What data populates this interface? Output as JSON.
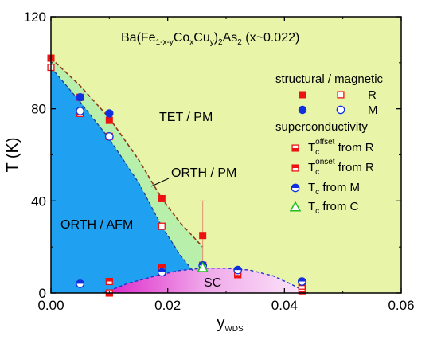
{
  "chart_data": {
    "type": "scatter",
    "title": {
      "base": "Ba(Fe",
      "sub1": "1-x-y",
      "mid1": "Co",
      "sub2": "x",
      "mid2": "Cu",
      "sub3": "y",
      "mid3": ")",
      "sub4": "2",
      "mid4": "As",
      "sub5": "2",
      "tail": "  (x~0.022)"
    },
    "xlabel": {
      "base": "y",
      "sub": "WDS"
    },
    "ylabel": "T (K)",
    "xlim": [
      0.0,
      0.06
    ],
    "ylim": [
      0,
      120
    ],
    "xticks": [
      0.0,
      0.02,
      0.04,
      0.06
    ],
    "xtick_labels": [
      "0.00",
      "0.02",
      "0.04",
      "0.06"
    ],
    "yticks": [
      0,
      40,
      80,
      120
    ],
    "ytick_labels": [
      "0",
      "40",
      "80",
      "120"
    ],
    "grid": false,
    "regions": [
      {
        "label": "TET / PM",
        "color": "#e8f5a8"
      },
      {
        "label": "ORTH / PM",
        "color": "#b8efaa"
      },
      {
        "label": "ORTH / AFM",
        "color": "#1fa0f0"
      },
      {
        "label": "SC",
        "color": "#e040d0"
      }
    ],
    "boundaries": {
      "structural": {
        "x": [
          0.0,
          0.005,
          0.01,
          0.015,
          0.019,
          0.022,
          0.026
        ],
        "y": [
          102,
          90,
          76,
          58,
          41,
          31,
          20
        ]
      },
      "magnetic": {
        "x": [
          0.0,
          0.005,
          0.01,
          0.015,
          0.019,
          0.022,
          0.0245
        ],
        "y": [
          98,
          83,
          67,
          48,
          29,
          17,
          9
        ]
      },
      "sc_dome": {
        "x": [
          0.009,
          0.013,
          0.018,
          0.022,
          0.026,
          0.03,
          0.034,
          0.038,
          0.041,
          0.044
        ],
        "y": [
          0,
          4,
          7.5,
          9.8,
          10.8,
          10.8,
          10,
          7.5,
          4,
          0
        ]
      }
    },
    "legend": {
      "placement": "right",
      "header1": "structural / magnetic",
      "header2": "superconductivity",
      "entries": [
        {
          "marker": "square-filled",
          "label": "R"
        },
        {
          "marker": "square-open",
          "label": "R"
        },
        {
          "marker": "circle-filled",
          "label": "M"
        },
        {
          "marker": "circle-open",
          "label": "M"
        },
        {
          "marker": "square-half-bottom",
          "prefix": "T",
          "sub": "c",
          "sup": "offset",
          "suffix": " from R"
        },
        {
          "marker": "square-half-top",
          "prefix": "T",
          "sub": "c",
          "sup": "onset",
          "suffix": " from R"
        },
        {
          "marker": "circle-half-top",
          "prefix": "T",
          "sub": "c",
          "suffix": " from M"
        },
        {
          "marker": "triangle-open",
          "prefix": "T",
          "sub": "c",
          "suffix": " from C"
        }
      ]
    },
    "series": [
      {
        "name": "structural R",
        "marker": "square-filled",
        "color": "#ee1111",
        "x": [
          0.0,
          0.005,
          0.01,
          0.019,
          0.026
        ],
        "y": [
          102,
          85,
          75,
          41,
          25
        ]
      },
      {
        "name": "magnetic R",
        "marker": "square-open",
        "color": "#ee1111",
        "x": [
          0.0,
          0.005,
          0.01,
          0.019,
          0.026
        ],
        "y": [
          98,
          78,
          68,
          29,
          11
        ]
      },
      {
        "name": "structural M",
        "marker": "circle-filled",
        "color": "#1030e0",
        "x": [
          0.005,
          0.01
        ],
        "y": [
          85,
          78
        ]
      },
      {
        "name": "magnetic M",
        "marker": "circle-open",
        "color": "#1030e0",
        "x": [
          0.005,
          0.01
        ],
        "y": [
          79,
          68
        ]
      },
      {
        "name": "Tc offset from R",
        "marker": "square-half-bottom",
        "color": "#ee1111",
        "x": [
          0.01,
          0.019,
          0.032,
          0.043
        ],
        "y": [
          0,
          9,
          8,
          1
        ]
      },
      {
        "name": "Tc onset from R",
        "marker": "square-half-top",
        "color": "#ee1111",
        "x": [
          0.01,
          0.019,
          0.026,
          0.032,
          0.043
        ],
        "y": [
          5,
          11,
          12,
          9,
          3
        ]
      },
      {
        "name": "Tc from M",
        "marker": "circle-half-top",
        "color": "#1030e0",
        "x": [
          0.005,
          0.019,
          0.026,
          0.032,
          0.043
        ],
        "y": [
          4,
          9,
          12,
          10,
          5
        ]
      },
      {
        "name": "Tc from C",
        "marker": "triangle-open",
        "color": "#22bb22",
        "x": [
          0.026
        ],
        "y": [
          11
        ]
      }
    ],
    "error_bar": {
      "x": 0.026,
      "y": 25,
      "low": 12,
      "high": 40,
      "color": "#e09070"
    },
    "annotation": {
      "text": "ORTH / PM",
      "arrow_from": [
        0.0225,
        47
      ],
      "arrow_to": [
        0.0185,
        40
      ]
    }
  }
}
